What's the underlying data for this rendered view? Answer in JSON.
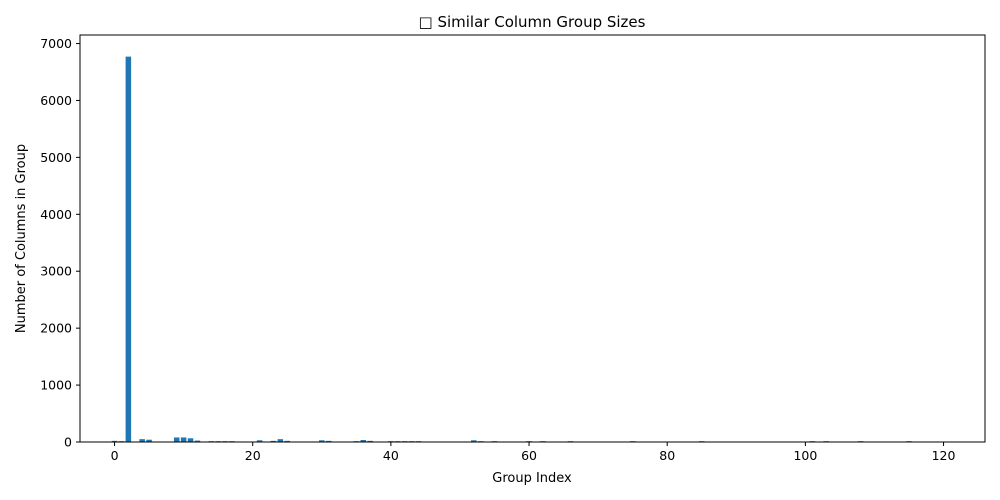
{
  "chart_data": {
    "type": "bar",
    "title": "□ Similar Column Group Sizes",
    "xlabel": "Group Index",
    "ylabel": "Number of Columns in Group",
    "xlim": [
      -5,
      126
    ],
    "ylim": [
      0,
      7150
    ],
    "xticks": [
      0,
      20,
      40,
      60,
      80,
      100,
      120
    ],
    "yticks": [
      0,
      1000,
      2000,
      3000,
      4000,
      5000,
      6000,
      7000
    ],
    "xtick_labels": [
      "0",
      "20",
      "40",
      "60",
      "80",
      "100",
      "120"
    ],
    "ytick_labels": [
      "0",
      "1000",
      "2000",
      "3000",
      "4000",
      "5000",
      "6000",
      "7000"
    ],
    "grid": false,
    "bar_color": "#1f77b4",
    "x": [
      0,
      1,
      2,
      4,
      5,
      9,
      10,
      11,
      12,
      14,
      15,
      16,
      17,
      21,
      23,
      24,
      25,
      30,
      31,
      35,
      36,
      37,
      40,
      41,
      42,
      43,
      44,
      52,
      53,
      55,
      60,
      62,
      66,
      75,
      85,
      101,
      103,
      108,
      115
    ],
    "values": [
      20,
      15,
      6770,
      50,
      40,
      80,
      80,
      65,
      25,
      15,
      15,
      15,
      15,
      30,
      20,
      50,
      20,
      30,
      20,
      15,
      35,
      20,
      15,
      15,
      15,
      15,
      15,
      30,
      15,
      15,
      15,
      15,
      15,
      15,
      15,
      15,
      15,
      15,
      15
    ]
  }
}
